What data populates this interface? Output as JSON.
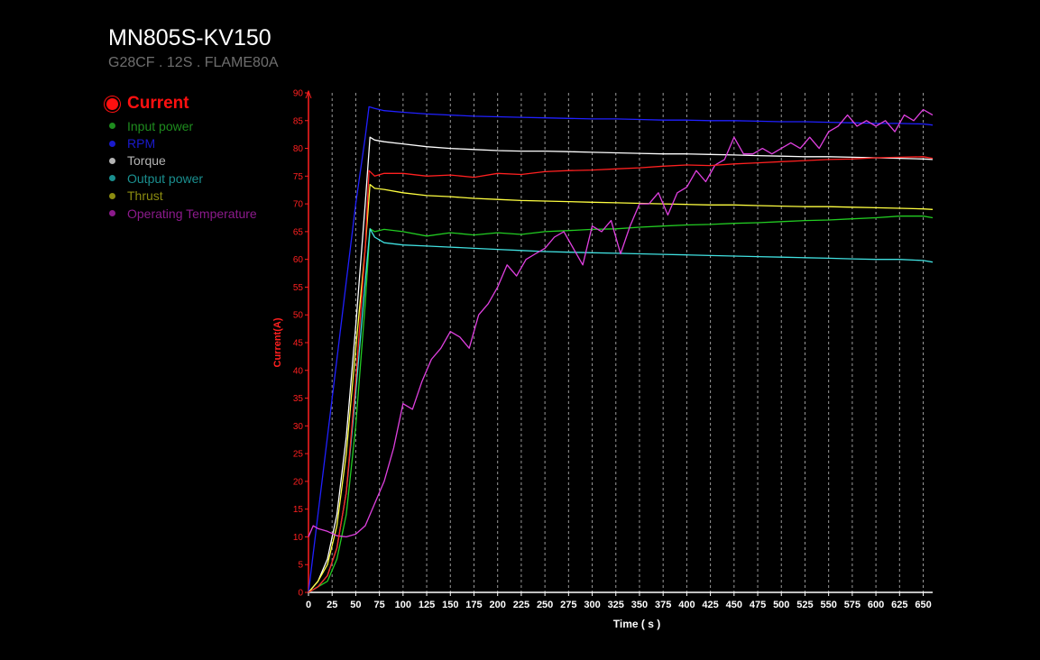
{
  "title": "MN805S-KV150",
  "subtitle": "G28CF . 12S . FLAME80A",
  "legend": {
    "main": {
      "label": "Current",
      "color": "#ff1010"
    },
    "items": [
      {
        "label": "Input power",
        "color": "#1e8c1e"
      },
      {
        "label": "RPM",
        "color": "#1a1acc"
      },
      {
        "label": "Torque",
        "color": "#b4b4b4"
      },
      {
        "label": "Output power",
        "color": "#1a8f8f"
      },
      {
        "label": "Thrust",
        "color": "#8c8c10"
      },
      {
        "label": "Operating Temperature",
        "color": "#8c1a8c"
      }
    ]
  },
  "chart_data": {
    "type": "line",
    "xlabel": "Time ( s )",
    "ylabel": "Current(A)",
    "xlim": [
      0,
      660
    ],
    "ylim": [
      0,
      90
    ],
    "xticks": [
      0,
      25,
      50,
      75,
      100,
      125,
      150,
      175,
      200,
      225,
      250,
      275,
      300,
      325,
      350,
      375,
      400,
      425,
      450,
      475,
      500,
      525,
      550,
      575,
      600,
      625,
      650
    ],
    "yticks": [
      0,
      5,
      10,
      15,
      20,
      25,
      30,
      35,
      40,
      45,
      50,
      55,
      60,
      65,
      70,
      75,
      80,
      85,
      90
    ],
    "grid": "vertical dashed",
    "series": [
      {
        "name": "Current",
        "color": "#ff2020",
        "x": [
          0,
          10,
          20,
          30,
          40,
          50,
          60,
          64,
          70,
          80,
          100,
          125,
          150,
          175,
          200,
          225,
          250,
          275,
          300,
          325,
          350,
          375,
          400,
          425,
          450,
          475,
          500,
          525,
          550,
          575,
          600,
          625,
          650,
          660
        ],
        "y": [
          0,
          1,
          3,
          8,
          18,
          38,
          62,
          76,
          75,
          75.5,
          75.5,
          75,
          75.2,
          74.8,
          75.5,
          75.3,
          75.8,
          76,
          76.1,
          76.3,
          76.5,
          76.8,
          77,
          76.9,
          77.2,
          77.4,
          77.6,
          77.8,
          78,
          78.1,
          78.3,
          78.4,
          78.5,
          78.2
        ]
      },
      {
        "name": "Input power",
        "color": "#22cc22",
        "x": [
          0,
          10,
          20,
          30,
          40,
          50,
          60,
          65,
          70,
          80,
          100,
          125,
          150,
          175,
          200,
          225,
          250,
          275,
          300,
          325,
          350,
          375,
          400,
          425,
          450,
          475,
          500,
          525,
          550,
          575,
          600,
          625,
          650,
          660
        ],
        "y": [
          0,
          1,
          2,
          6,
          14,
          30,
          52,
          65.5,
          65,
          65.4,
          65,
          64.2,
          64.8,
          64.4,
          64.8,
          64.5,
          65,
          65.2,
          65.4,
          65.5,
          65.8,
          66,
          66.2,
          66.3,
          66.5,
          66.6,
          66.8,
          67,
          67.1,
          67.3,
          67.5,
          67.8,
          67.8,
          67.5
        ]
      },
      {
        "name": "RPM",
        "color": "#2020ff",
        "x": [
          0,
          10,
          20,
          30,
          40,
          50,
          60,
          64,
          70,
          80,
          100,
          125,
          150,
          175,
          200,
          225,
          250,
          275,
          300,
          325,
          350,
          375,
          400,
          425,
          450,
          475,
          500,
          525,
          550,
          575,
          600,
          625,
          650,
          660
        ],
        "y": [
          0,
          14,
          28,
          42,
          56,
          70,
          82,
          87.5,
          87.2,
          86.8,
          86.5,
          86.2,
          86,
          85.8,
          85.7,
          85.6,
          85.5,
          85.4,
          85.3,
          85.3,
          85.2,
          85.1,
          85.1,
          85,
          85,
          84.9,
          84.8,
          84.8,
          84.7,
          84.6,
          84.5,
          84.5,
          84.4,
          84.2
        ]
      },
      {
        "name": "Torque",
        "color": "#ffffff",
        "x": [
          0,
          10,
          20,
          30,
          40,
          50,
          60,
          65,
          70,
          80,
          100,
          125,
          150,
          175,
          200,
          225,
          250,
          275,
          300,
          325,
          350,
          375,
          400,
          425,
          450,
          475,
          500,
          525,
          550,
          575,
          600,
          625,
          650,
          660
        ],
        "y": [
          0,
          2,
          6,
          14,
          28,
          48,
          70,
          82,
          81.5,
          81.2,
          80.8,
          80.3,
          80,
          79.8,
          79.6,
          79.5,
          79.5,
          79.4,
          79.3,
          79.2,
          79.1,
          79,
          79,
          78.9,
          78.8,
          78.7,
          78.6,
          78.5,
          78.5,
          78.4,
          78.3,
          78.2,
          78.1,
          78
        ]
      },
      {
        "name": "Output power",
        "color": "#40e0e0",
        "x": [
          0,
          10,
          20,
          30,
          40,
          50,
          60,
          65,
          70,
          80,
          100,
          125,
          150,
          175,
          200,
          225,
          250,
          275,
          300,
          325,
          350,
          375,
          400,
          425,
          450,
          475,
          500,
          525,
          550,
          575,
          600,
          625,
          650,
          660
        ],
        "y": [
          0,
          1,
          3,
          8,
          18,
          36,
          56,
          65.5,
          64,
          63,
          62.6,
          62.4,
          62.2,
          62,
          61.8,
          61.6,
          61.4,
          61.3,
          61.2,
          61.1,
          61,
          60.9,
          60.8,
          60.7,
          60.6,
          60.5,
          60.4,
          60.3,
          60.2,
          60.1,
          60,
          60,
          59.8,
          59.5
        ]
      },
      {
        "name": "Thrust",
        "color": "#ffff40",
        "x": [
          0,
          10,
          20,
          30,
          40,
          50,
          60,
          65,
          70,
          80,
          100,
          125,
          150,
          175,
          200,
          225,
          250,
          275,
          300,
          325,
          350,
          375,
          400,
          425,
          450,
          475,
          500,
          525,
          550,
          575,
          600,
          625,
          650,
          660
        ],
        "y": [
          0,
          2,
          5,
          12,
          25,
          44,
          62,
          73.5,
          72.8,
          72.6,
          72,
          71.5,
          71.3,
          71,
          70.8,
          70.6,
          70.5,
          70.4,
          70.3,
          70.2,
          70.1,
          70,
          69.9,
          69.8,
          69.8,
          69.7,
          69.6,
          69.5,
          69.5,
          69.4,
          69.3,
          69.2,
          69.1,
          69
        ]
      },
      {
        "name": "Operating Temperature",
        "color": "#e040e0",
        "x": [
          0,
          5,
          10,
          20,
          30,
          40,
          50,
          60,
          70,
          80,
          90,
          100,
          110,
          120,
          130,
          140,
          150,
          160,
          170,
          180,
          190,
          200,
          210,
          220,
          230,
          240,
          250,
          260,
          270,
          280,
          290,
          300,
          310,
          320,
          330,
          340,
          350,
          360,
          370,
          380,
          390,
          400,
          410,
          420,
          430,
          440,
          450,
          460,
          470,
          480,
          490,
          500,
          510,
          520,
          530,
          540,
          550,
          560,
          570,
          580,
          590,
          600,
          610,
          620,
          630,
          640,
          650,
          660
        ],
        "y": [
          10,
          12,
          11.5,
          11,
          10.2,
          10,
          10.5,
          12,
          16,
          20,
          26,
          34,
          33,
          38,
          42,
          44,
          47,
          46,
          44,
          50,
          52,
          55,
          59,
          57,
          60,
          61,
          62,
          64,
          65,
          62,
          59,
          66,
          65,
          67,
          61,
          66,
          70,
          70,
          72,
          68,
          72,
          73,
          76,
          74,
          77,
          78,
          82,
          79,
          79,
          80,
          79,
          80,
          81,
          80,
          82,
          80,
          83,
          84,
          86,
          84,
          85,
          84,
          85,
          83,
          86,
          85,
          87,
          86
        ]
      }
    ]
  }
}
